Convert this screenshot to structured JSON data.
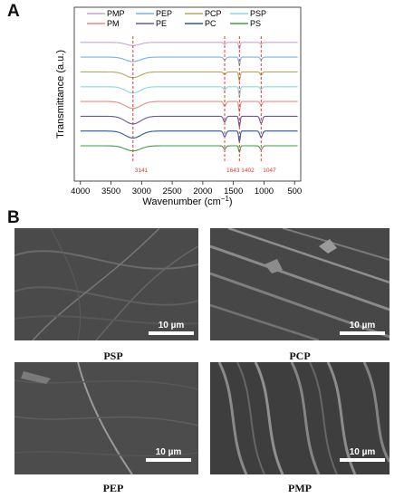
{
  "panel_a_label": "A",
  "panel_b_label": "B",
  "chart_data": {
    "type": "line",
    "xlabel": "Wavenumber (cm",
    "xlabel_sup": "−1",
    "xlabel_tail": ")",
    "ylabel": "Transmittance (a.u.)",
    "xlim": [
      4100,
      400
    ],
    "x_ticks": [
      4000,
      3500,
      3000,
      2500,
      2000,
      1500,
      1000,
      500
    ],
    "x_tick_labels": [
      "4000",
      "3500",
      "3000",
      "2500",
      "2000",
      "1500",
      "1000",
      "500"
    ],
    "legend": {
      "placement": "top",
      "entries": [
        {
          "label": "PMP",
          "color": "#c9a5cf"
        },
        {
          "label": "PEP",
          "color": "#74b3e6"
        },
        {
          "label": "PCP",
          "color": "#b0a862"
        },
        {
          "label": "PSP",
          "color": "#8fd3e6"
        },
        {
          "label": "PM",
          "color": "#ec8a80"
        },
        {
          "label": "PE",
          "color": "#6e52a6"
        },
        {
          "label": "PC",
          "color": "#2d56a3"
        },
        {
          "label": "PS",
          "color": "#3f9f4a"
        }
      ]
    },
    "reference_peaks": [
      {
        "x": 3141,
        "label": "3141"
      },
      {
        "x": 1643,
        "label": "1643"
      },
      {
        "x": 1402,
        "label": "1402"
      },
      {
        "x": 1047,
        "label": "1047"
      }
    ],
    "series": [
      {
        "name": "PMP",
        "color": "#c9a5cf",
        "baseline": 0.95,
        "bands": [
          {
            "c": 3141,
            "w": 160,
            "d": 0.25
          },
          {
            "c": 1643,
            "w": 30,
            "d": 0.15
          },
          {
            "c": 1402,
            "w": 18,
            "d": 0.5
          },
          {
            "c": 1047,
            "w": 25,
            "d": 0.15
          }
        ]
      },
      {
        "name": "PEP",
        "color": "#74b3e6",
        "baseline": 0.83,
        "bands": [
          {
            "c": 3141,
            "w": 170,
            "d": 0.35
          },
          {
            "c": 1643,
            "w": 30,
            "d": 0.2
          },
          {
            "c": 1402,
            "w": 18,
            "d": 0.6
          },
          {
            "c": 1047,
            "w": 25,
            "d": 0.2
          }
        ]
      },
      {
        "name": "PCP",
        "color": "#b0a862",
        "baseline": 0.71,
        "bands": [
          {
            "c": 3141,
            "w": 170,
            "d": 0.45
          },
          {
            "c": 1643,
            "w": 30,
            "d": 0.2
          },
          {
            "c": 1402,
            "w": 18,
            "d": 0.7
          },
          {
            "c": 1047,
            "w": 25,
            "d": 0.25
          }
        ]
      },
      {
        "name": "PSP",
        "color": "#8fd3e6",
        "baseline": 0.59,
        "bands": [
          {
            "c": 3141,
            "w": 170,
            "d": 0.5
          },
          {
            "c": 1643,
            "w": 30,
            "d": 0.25
          },
          {
            "c": 1402,
            "w": 18,
            "d": 0.75
          },
          {
            "c": 1047,
            "w": 25,
            "d": 0.25
          }
        ]
      },
      {
        "name": "PM",
        "color": "#ec8a80",
        "baseline": 0.47,
        "bands": [
          {
            "c": 3141,
            "w": 180,
            "d": 0.55
          },
          {
            "c": 1643,
            "w": 30,
            "d": 0.35
          },
          {
            "c": 1402,
            "w": 18,
            "d": 0.8
          },
          {
            "c": 1047,
            "w": 25,
            "d": 0.3
          }
        ]
      },
      {
        "name": "PE",
        "color": "#6e52a6",
        "baseline": 0.35,
        "bands": [
          {
            "c": 3141,
            "w": 180,
            "d": 0.6
          },
          {
            "c": 1643,
            "w": 30,
            "d": 0.45
          },
          {
            "c": 1402,
            "w": 18,
            "d": 0.8
          },
          {
            "c": 1047,
            "w": 30,
            "d": 0.55
          }
        ]
      },
      {
        "name": "PC",
        "color": "#2d56a3",
        "baseline": 0.23,
        "bands": [
          {
            "c": 3141,
            "w": 180,
            "d": 0.55
          },
          {
            "c": 1643,
            "w": 30,
            "d": 0.45
          },
          {
            "c": 1402,
            "w": 18,
            "d": 0.85
          },
          {
            "c": 1047,
            "w": 30,
            "d": 0.5
          }
        ]
      },
      {
        "name": "PS",
        "color": "#3f9f4a",
        "baseline": 0.11,
        "bands": [
          {
            "c": 3141,
            "w": 180,
            "d": 0.4
          },
          {
            "c": 1643,
            "w": 30,
            "d": 0.25
          },
          {
            "c": 1402,
            "w": 18,
            "d": 0.5
          },
          {
            "c": 1047,
            "w": 30,
            "d": 0.3
          }
        ]
      }
    ]
  },
  "sem_images": [
    {
      "caption": "PSP",
      "scale_label": "10 µm"
    },
    {
      "caption": "PCP",
      "scale_label": "10 µm"
    },
    {
      "caption": "PEP",
      "scale_label": "10 µm"
    },
    {
      "caption": "PMP",
      "scale_label": "10 µm"
    }
  ]
}
